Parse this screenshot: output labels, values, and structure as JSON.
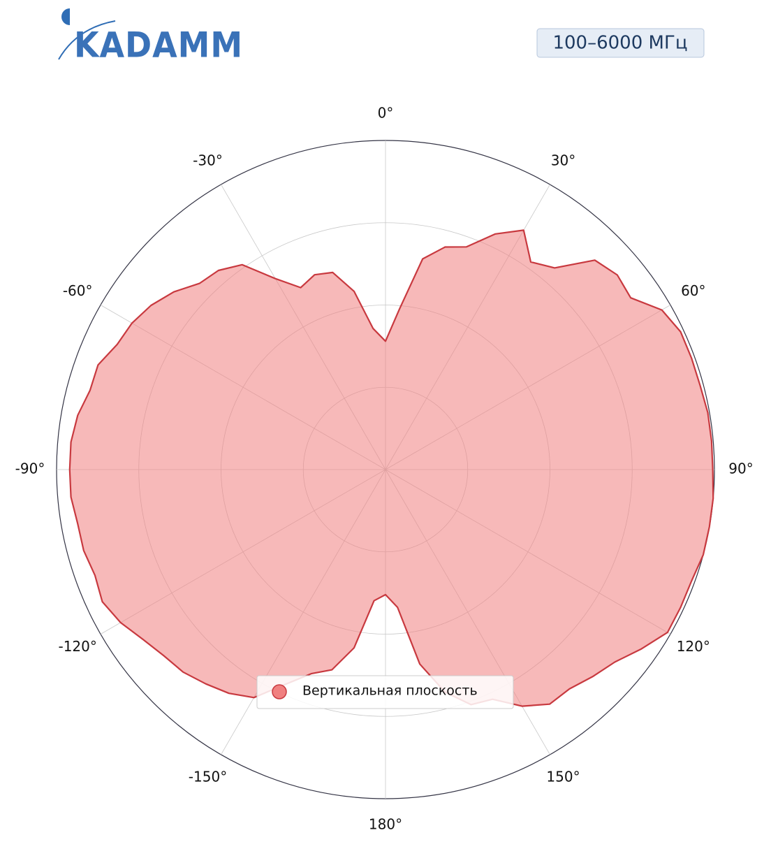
{
  "header": {
    "logo": "KADAMM",
    "badge": "100–6000 МГц"
  },
  "chart_data": {
    "type": "polar",
    "theta": [
      -175,
      -170,
      -165,
      -160,
      -155,
      -150,
      -145,
      -140,
      -135,
      -130,
      -125,
      -120,
      -115,
      -110,
      -105,
      -100,
      -95,
      -90,
      -85,
      -80,
      -75,
      -70,
      -65,
      -60,
      -55,
      -50,
      -45,
      -40,
      -35,
      -30,
      -25,
      -20,
      -15,
      -10,
      -5,
      0,
      5,
      10,
      15,
      20,
      25,
      30,
      35,
      40,
      45,
      50,
      55,
      60,
      65,
      70,
      75,
      80,
      85,
      90,
      95,
      100,
      105,
      110,
      115,
      120,
      125,
      130,
      135,
      140,
      145,
      150,
      155,
      160,
      165,
      170,
      175,
      180
    ],
    "series": [
      {
        "name": "Вертикальная плоскость",
        "color": "#f08080",
        "edgecolor": "#c8393f",
        "values": [
          0.4,
          0.55,
          0.63,
          0.66,
          0.72,
          0.8,
          0.83,
          0.85,
          0.87,
          0.88,
          0.9,
          0.93,
          0.95,
          0.94,
          0.95,
          0.95,
          0.96,
          0.96,
          0.96,
          0.95,
          0.93,
          0.93,
          0.9,
          0.89,
          0.87,
          0.84,
          0.8,
          0.79,
          0.76,
          0.67,
          0.61,
          0.63,
          0.62,
          0.55,
          0.43,
          0.39,
          0.49,
          0.65,
          0.7,
          0.72,
          0.79,
          0.84,
          0.77,
          0.8,
          0.9,
          0.92,
          0.91,
          0.97,
          0.99,
          0.99,
          0.99,
          0.995,
          0.995,
          0.995,
          1.0,
          1.0,
          1.0,
          0.99,
          0.99,
          0.99,
          0.95,
          0.91,
          0.89,
          0.87,
          0.87,
          0.83,
          0.77,
          0.76,
          0.7,
          0.6,
          0.42,
          0.38
        ]
      }
    ],
    "rlim": [
      0,
      1
    ],
    "rticks": [
      0.25,
      0.5,
      0.75,
      1
    ],
    "thetaticks": [
      {
        "value": 0,
        "label": "0°"
      },
      {
        "value": 30,
        "label": "30°"
      },
      {
        "value": 60,
        "label": "60°"
      },
      {
        "value": 90,
        "label": "90°"
      },
      {
        "value": 120,
        "label": "120°"
      },
      {
        "value": 150,
        "label": "150°"
      },
      {
        "value": 180,
        "label": "180°"
      },
      {
        "value": -150,
        "label": "-150°"
      },
      {
        "value": -120,
        "label": "-120°"
      },
      {
        "value": -90,
        "label": "-90°"
      },
      {
        "value": -60,
        "label": "-60°"
      },
      {
        "value": -30,
        "label": "-30°"
      }
    ],
    "grid": true,
    "legend": "lower center"
  }
}
